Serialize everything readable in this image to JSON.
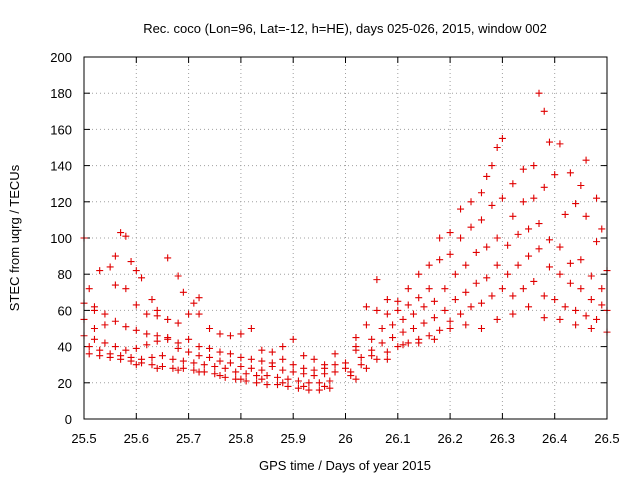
{
  "chart_data": {
    "type": "scatter",
    "title": "Rec. coco (Lon=96, Lat=-12, h=HE), days 025-026, 2015, window 002",
    "xlabel": "GPS time / Days of year 2015",
    "ylabel": "STEC from uqrg / TECUs",
    "xlim": [
      25.5,
      26.5
    ],
    "ylim": [
      0,
      200
    ],
    "x_ticks": [
      "25.5",
      "25.6",
      "25.7",
      "25.8",
      "25.9",
      "26",
      "26.1",
      "26.2",
      "26.3",
      "26.4",
      "26.5"
    ],
    "y_ticks": [
      "0",
      "20",
      "40",
      "60",
      "80",
      "100",
      "120",
      "140",
      "160",
      "180",
      "200"
    ],
    "grid": true,
    "marker": "plus",
    "color": "#e00000",
    "series": [
      {
        "points": [
          [
            25.5,
            100
          ],
          [
            25.51,
            72
          ],
          [
            25.52,
            60
          ],
          [
            25.53,
            82
          ],
          [
            25.55,
            84
          ],
          [
            25.56,
            90
          ],
          [
            25.57,
            103
          ],
          [
            25.58,
            101
          ],
          [
            25.59,
            87
          ],
          [
            25.6,
            82
          ],
          [
            25.61,
            78
          ],
          [
            25.63,
            66
          ],
          [
            25.64,
            60
          ],
          [
            25.66,
            89
          ],
          [
            25.68,
            79
          ],
          [
            25.69,
            70
          ],
          [
            25.71,
            64
          ],
          [
            25.72,
            67
          ],
          [
            25.5,
            64
          ],
          [
            25.52,
            62
          ],
          [
            25.54,
            58
          ],
          [
            25.56,
            74
          ],
          [
            25.58,
            72
          ],
          [
            25.6,
            63
          ],
          [
            25.62,
            58
          ],
          [
            25.64,
            57
          ],
          [
            25.66,
            55
          ],
          [
            25.68,
            53
          ],
          [
            25.7,
            58
          ],
          [
            25.72,
            58
          ],
          [
            25.74,
            50
          ],
          [
            25.76,
            47
          ],
          [
            25.78,
            46
          ],
          [
            25.8,
            47
          ],
          [
            25.82,
            50
          ],
          [
            25.84,
            38
          ],
          [
            25.86,
            37
          ],
          [
            25.88,
            40
          ],
          [
            25.9,
            44
          ],
          [
            25.92,
            35
          ],
          [
            25.94,
            33
          ],
          [
            25.96,
            30
          ],
          [
            25.98,
            36
          ],
          [
            25.5,
            55
          ],
          [
            25.52,
            50
          ],
          [
            25.54,
            52
          ],
          [
            25.56,
            54
          ],
          [
            25.58,
            51
          ],
          [
            25.6,
            49
          ],
          [
            25.62,
            47
          ],
          [
            25.64,
            46
          ],
          [
            25.66,
            45
          ],
          [
            25.68,
            42
          ],
          [
            25.7,
            44
          ],
          [
            25.72,
            40
          ],
          [
            25.74,
            39
          ],
          [
            25.76,
            37
          ],
          [
            25.78,
            36
          ],
          [
            25.8,
            34
          ],
          [
            25.82,
            33
          ],
          [
            25.84,
            32
          ],
          [
            25.86,
            31
          ],
          [
            25.88,
            33
          ],
          [
            25.9,
            30
          ],
          [
            25.92,
            28
          ],
          [
            25.94,
            27
          ],
          [
            25.96,
            28
          ],
          [
            25.98,
            30
          ],
          [
            25.5,
            46
          ],
          [
            25.52,
            44
          ],
          [
            25.54,
            42
          ],
          [
            25.56,
            40
          ],
          [
            25.58,
            38
          ],
          [
            25.6,
            39
          ],
          [
            25.62,
            41
          ],
          [
            25.64,
            43
          ],
          [
            25.66,
            44
          ],
          [
            25.68,
            39
          ],
          [
            25.7,
            37
          ],
          [
            25.72,
            35
          ],
          [
            25.74,
            34
          ],
          [
            25.76,
            32
          ],
          [
            25.78,
            31
          ],
          [
            25.8,
            29
          ],
          [
            25.82,
            28
          ],
          [
            25.84,
            27
          ],
          [
            25.86,
            29
          ],
          [
            25.88,
            27
          ],
          [
            25.9,
            26
          ],
          [
            25.92,
            25
          ],
          [
            25.94,
            24
          ],
          [
            25.96,
            25
          ],
          [
            25.98,
            26
          ],
          [
            25.51,
            40
          ],
          [
            25.53,
            38
          ],
          [
            25.55,
            36
          ],
          [
            25.57,
            35
          ],
          [
            25.59,
            34
          ],
          [
            25.61,
            33
          ],
          [
            25.63,
            34
          ],
          [
            25.65,
            35
          ],
          [
            25.67,
            33
          ],
          [
            25.69,
            32
          ],
          [
            25.71,
            31
          ],
          [
            25.73,
            30
          ],
          [
            25.75,
            29
          ],
          [
            25.77,
            28
          ],
          [
            25.79,
            26
          ],
          [
            25.81,
            25
          ],
          [
            25.83,
            24
          ],
          [
            25.85,
            24
          ],
          [
            25.87,
            23
          ],
          [
            25.89,
            22
          ],
          [
            25.91,
            21
          ],
          [
            25.93,
            20
          ],
          [
            25.95,
            20
          ],
          [
            25.97,
            21
          ],
          [
            25.51,
            36
          ],
          [
            25.53,
            35
          ],
          [
            25.55,
            34
          ],
          [
            25.57,
            33
          ],
          [
            25.59,
            32
          ],
          [
            25.61,
            31
          ],
          [
            25.63,
            30
          ],
          [
            25.65,
            29
          ],
          [
            25.67,
            28
          ],
          [
            25.69,
            28
          ],
          [
            25.71,
            27
          ],
          [
            25.73,
            26
          ],
          [
            25.75,
            25
          ],
          [
            25.77,
            23
          ],
          [
            25.79,
            22
          ],
          [
            25.81,
            21
          ],
          [
            25.83,
            20
          ],
          [
            25.85,
            19
          ],
          [
            25.87,
            19
          ],
          [
            25.89,
            18
          ],
          [
            25.91,
            17
          ],
          [
            25.93,
            16
          ],
          [
            25.95,
            16
          ],
          [
            25.97,
            17
          ],
          [
            25.6,
            30
          ],
          [
            25.64,
            28
          ],
          [
            25.68,
            27
          ],
          [
            25.72,
            26
          ],
          [
            25.76,
            24
          ],
          [
            25.8,
            22
          ],
          [
            25.84,
            22
          ],
          [
            25.88,
            20
          ],
          [
            25.92,
            18
          ],
          [
            25.96,
            18
          ],
          [
            26.0,
            31
          ],
          [
            26.02,
            45
          ],
          [
            26.04,
            62
          ],
          [
            26.06,
            77
          ],
          [
            26.08,
            66
          ],
          [
            26.1,
            65
          ],
          [
            26.12,
            72
          ],
          [
            26.14,
            80
          ],
          [
            26.16,
            85
          ],
          [
            26.18,
            100
          ],
          [
            26.2,
            103
          ],
          [
            26.22,
            116
          ],
          [
            26.24,
            120
          ],
          [
            26.26,
            125
          ],
          [
            26.27,
            134
          ],
          [
            26.28,
            140
          ],
          [
            26.29,
            150
          ],
          [
            26.3,
            155
          ],
          [
            26.32,
            130
          ],
          [
            26.34,
            138
          ],
          [
            26.36,
            140
          ],
          [
            26.37,
            180
          ],
          [
            26.38,
            170
          ],
          [
            26.39,
            153
          ],
          [
            26.41,
            152
          ],
          [
            26.43,
            136
          ],
          [
            26.45,
            129
          ],
          [
            26.46,
            143
          ],
          [
            26.48,
            122
          ],
          [
            26.49,
            105
          ],
          [
            26.0,
            28
          ],
          [
            26.02,
            38
          ],
          [
            26.04,
            52
          ],
          [
            26.06,
            60
          ],
          [
            26.08,
            58
          ],
          [
            26.1,
            60
          ],
          [
            26.12,
            63
          ],
          [
            26.14,
            67
          ],
          [
            26.16,
            72
          ],
          [
            26.18,
            88
          ],
          [
            26.2,
            91
          ],
          [
            26.22,
            100
          ],
          [
            26.24,
            106
          ],
          [
            26.26,
            110
          ],
          [
            26.28,
            118
          ],
          [
            26.3,
            122
          ],
          [
            26.32,
            112
          ],
          [
            26.34,
            120
          ],
          [
            26.36,
            122
          ],
          [
            26.38,
            128
          ],
          [
            26.4,
            135
          ],
          [
            26.42,
            113
          ],
          [
            26.44,
            119
          ],
          [
            26.46,
            112
          ],
          [
            26.48,
            98
          ],
          [
            26.5,
            82
          ],
          [
            26.01,
            26
          ],
          [
            26.03,
            34
          ],
          [
            26.05,
            44
          ],
          [
            26.07,
            50
          ],
          [
            26.09,
            52
          ],
          [
            26.11,
            55
          ],
          [
            26.13,
            58
          ],
          [
            26.15,
            62
          ],
          [
            26.17,
            65
          ],
          [
            26.19,
            72
          ],
          [
            26.21,
            80
          ],
          [
            26.23,
            85
          ],
          [
            26.25,
            92
          ],
          [
            26.27,
            95
          ],
          [
            26.29,
            100
          ],
          [
            26.31,
            96
          ],
          [
            26.33,
            102
          ],
          [
            26.35,
            105
          ],
          [
            26.37,
            108
          ],
          [
            26.39,
            99
          ],
          [
            26.41,
            95
          ],
          [
            26.43,
            86
          ],
          [
            26.45,
            88
          ],
          [
            26.47,
            79
          ],
          [
            26.49,
            72
          ],
          [
            26.01,
            24
          ],
          [
            26.03,
            30
          ],
          [
            26.05,
            38
          ],
          [
            26.07,
            42
          ],
          [
            26.09,
            45
          ],
          [
            26.11,
            48
          ],
          [
            26.13,
            50
          ],
          [
            26.15,
            53
          ],
          [
            26.17,
            56
          ],
          [
            26.19,
            60
          ],
          [
            26.21,
            66
          ],
          [
            26.23,
            70
          ],
          [
            26.25,
            75
          ],
          [
            26.27,
            78
          ],
          [
            26.29,
            85
          ],
          [
            26.31,
            80
          ],
          [
            26.33,
            85
          ],
          [
            26.35,
            90
          ],
          [
            26.37,
            94
          ],
          [
            26.39,
            84
          ],
          [
            26.41,
            80
          ],
          [
            26.43,
            75
          ],
          [
            26.45,
            72
          ],
          [
            26.47,
            66
          ],
          [
            26.49,
            63
          ],
          [
            26.02,
            22
          ],
          [
            26.04,
            28
          ],
          [
            26.06,
            33
          ],
          [
            26.08,
            37
          ],
          [
            26.1,
            40
          ],
          [
            26.12,
            42
          ],
          [
            26.14,
            44
          ],
          [
            26.16,
            46
          ],
          [
            26.18,
            49
          ],
          [
            26.2,
            54
          ],
          [
            26.22,
            58
          ],
          [
            26.24,
            62
          ],
          [
            26.26,
            64
          ],
          [
            26.28,
            68
          ],
          [
            26.3,
            72
          ],
          [
            26.32,
            68
          ],
          [
            26.34,
            72
          ],
          [
            26.36,
            76
          ],
          [
            26.38,
            68
          ],
          [
            26.4,
            66
          ],
          [
            26.42,
            62
          ],
          [
            26.44,
            60
          ],
          [
            26.46,
            57
          ],
          [
            26.48,
            55
          ],
          [
            26.5,
            48
          ],
          [
            26.02,
            40
          ],
          [
            26.05,
            35
          ],
          [
            26.08,
            33
          ],
          [
            26.11,
            41
          ],
          [
            26.14,
            42
          ],
          [
            26.17,
            44
          ],
          [
            26.2,
            50
          ],
          [
            26.23,
            52
          ],
          [
            26.26,
            50
          ],
          [
            26.29,
            55
          ],
          [
            26.32,
            58
          ],
          [
            26.35,
            62
          ],
          [
            26.38,
            56
          ],
          [
            26.41,
            55
          ],
          [
            26.44,
            52
          ],
          [
            26.47,
            50
          ],
          [
            26.5,
            60
          ]
        ]
      }
    ]
  }
}
